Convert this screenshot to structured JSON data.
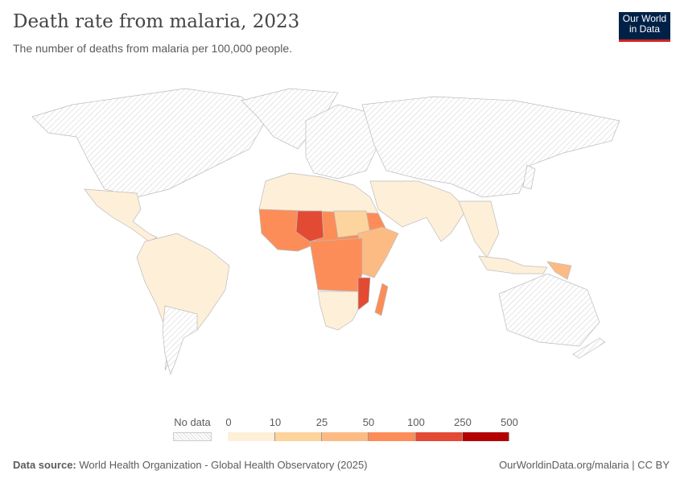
{
  "header": {
    "title": "Death rate from malaria, 2023",
    "subtitle": "The number of deaths from malaria per 100,000 people.",
    "logo": "Our World in Data"
  },
  "legend": {
    "no_data_label": "No data",
    "ticks": [
      "0",
      "10",
      "25",
      "50",
      "100",
      "250",
      "500"
    ],
    "colors": [
      "#feefd9",
      "#fdd49e",
      "#fdbb84",
      "#fc8d59",
      "#e34a33",
      "#b30000"
    ],
    "no_data_color": "#e6e6e6"
  },
  "footer": {
    "source_label": "Data source:",
    "source": "World Health Organization - Global Health Observatory (2025)",
    "link": "OurWorldinData.org/malaria | CC BY"
  }
}
